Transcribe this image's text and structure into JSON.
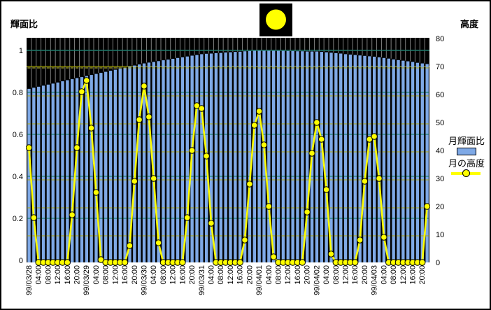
{
  "window": {
    "background": "#ffffff",
    "border_color": "#000000"
  },
  "titles": {
    "left_axis_title": "輝面比",
    "right_axis_title": "高度"
  },
  "moon_icon": {
    "name": "full-moon-icon",
    "color": "#FFFF00",
    "background": "#000000"
  },
  "legend": {
    "series1_label": "月輝面比",
    "series2_label": "月の高度"
  },
  "colors": {
    "bar_fill": "#7FA9E6",
    "line_stroke": "#FFFF00",
    "marker_fill": "#FFFF00",
    "marker_outline": "#000000",
    "plot_background": "#000000",
    "left_gridline": "#1F8272",
    "right_gridline": "#AAAA33",
    "right_gridline_solid": "#9A9A00",
    "vertical_gridline": "#7F7F7F",
    "text": "#000000"
  },
  "chart_data": {
    "type": "combo-bar-line",
    "title": "",
    "left_axis": {
      "title": "輝面比",
      "tick_labels": [
        "1",
        "0.8",
        "0.6",
        "0.4",
        "0.2",
        "0"
      ],
      "tick_values": [
        1.0,
        0.8,
        0.6,
        0.4,
        0.2,
        0.0
      ],
      "range": [
        0,
        1.07
      ],
      "solid_gridline_at": 1.0
    },
    "right_axis": {
      "title": "高度",
      "tick_labels": [
        "80",
        "70",
        "60",
        "50",
        "40",
        "30",
        "20",
        "10",
        "0"
      ],
      "tick_values": [
        80,
        70,
        60,
        50,
        40,
        30,
        20,
        10,
        0
      ],
      "range": [
        0,
        80.25
      ],
      "solid_gridline_at": 70,
      "dashed_gridlines_at": [
        10,
        20,
        30,
        40,
        50,
        60,
        70
      ]
    },
    "x_axis": {
      "interval_hours": 2,
      "labels_rotated_degrees": 90
    },
    "categories": [
      "99/03/28",
      "",
      "04:00",
      "",
      "08:00",
      "",
      "12:00",
      "",
      "16:00",
      "",
      "20:00",
      "",
      "99/03/29",
      "",
      "04:00",
      "",
      "08:00",
      "",
      "12:00",
      "",
      "16:00",
      "",
      "20:00",
      "",
      "99/03/30",
      "",
      "04:00",
      "",
      "08:00",
      "",
      "12:00",
      "",
      "16:00",
      "",
      "20:00",
      "",
      "99/03/31",
      "",
      "04:00",
      "",
      "08:00",
      "",
      "12:00",
      "",
      "16:00",
      "",
      "20:00",
      "",
      "99/04/01",
      "",
      "04:00",
      "",
      "08:00",
      "",
      "12:00",
      "",
      "16:00",
      "",
      "20:00",
      "",
      "99/04/02",
      "",
      "04:00",
      "",
      "08:00",
      "",
      "12:00",
      "",
      "16:00",
      "",
      "20:00",
      "",
      "99/04/03",
      "",
      "04:00",
      "",
      "08:00",
      "",
      "12:00",
      "",
      "16:00",
      "",
      "20:00",
      ""
    ],
    "series": [
      {
        "name": "月輝面比",
        "type": "bar",
        "axis": "left",
        "color": "#7FA9E6",
        "values": [
          0.817,
          0.822,
          0.827,
          0.832,
          0.837,
          0.842,
          0.847,
          0.853,
          0.858,
          0.863,
          0.868,
          0.873,
          0.878,
          0.883,
          0.888,
          0.893,
          0.898,
          0.903,
          0.908,
          0.913,
          0.918,
          0.923,
          0.928,
          0.933,
          0.938,
          0.942,
          0.945,
          0.949,
          0.953,
          0.956,
          0.96,
          0.964,
          0.967,
          0.971,
          0.975,
          0.978,
          0.982,
          0.984,
          0.985,
          0.987,
          0.988,
          0.99,
          0.991,
          0.993,
          0.994,
          0.996,
          0.997,
          0.999,
          1.0,
          1.0,
          0.999,
          0.999,
          0.998,
          0.998,
          0.997,
          0.997,
          0.996,
          0.996,
          0.995,
          0.995,
          0.995,
          0.993,
          0.991,
          0.989,
          0.987,
          0.985,
          0.982,
          0.98,
          0.978,
          0.976,
          0.974,
          0.972,
          0.97,
          0.967,
          0.964,
          0.961,
          0.957,
          0.954,
          0.951,
          0.948,
          0.945,
          0.941,
          0.938,
          0.935
        ]
      },
      {
        "name": "月の高度",
        "type": "line",
        "axis": "right",
        "color": "#FFFF00",
        "values": [
          41,
          16,
          0,
          0,
          0,
          0,
          0,
          0,
          0,
          17,
          41,
          61,
          65,
          48,
          25,
          1,
          0,
          0,
          0,
          0,
          0,
          6,
          29,
          51,
          63,
          52,
          30,
          7,
          0,
          0,
          0,
          0,
          0,
          16,
          40,
          56,
          55,
          38,
          14,
          0,
          0,
          0,
          0,
          0,
          0,
          8,
          28,
          49,
          54,
          42,
          20,
          2,
          0,
          0,
          0,
          0,
          0,
          0,
          18,
          39,
          50,
          44,
          26,
          3,
          0,
          0,
          0,
          0,
          0,
          8,
          29,
          44,
          45,
          30,
          9,
          0,
          0,
          0,
          0,
          0,
          0,
          0,
          0,
          20
        ]
      }
    ],
    "legend_position": "right",
    "plot_background": "#000000",
    "grid_on": true
  }
}
